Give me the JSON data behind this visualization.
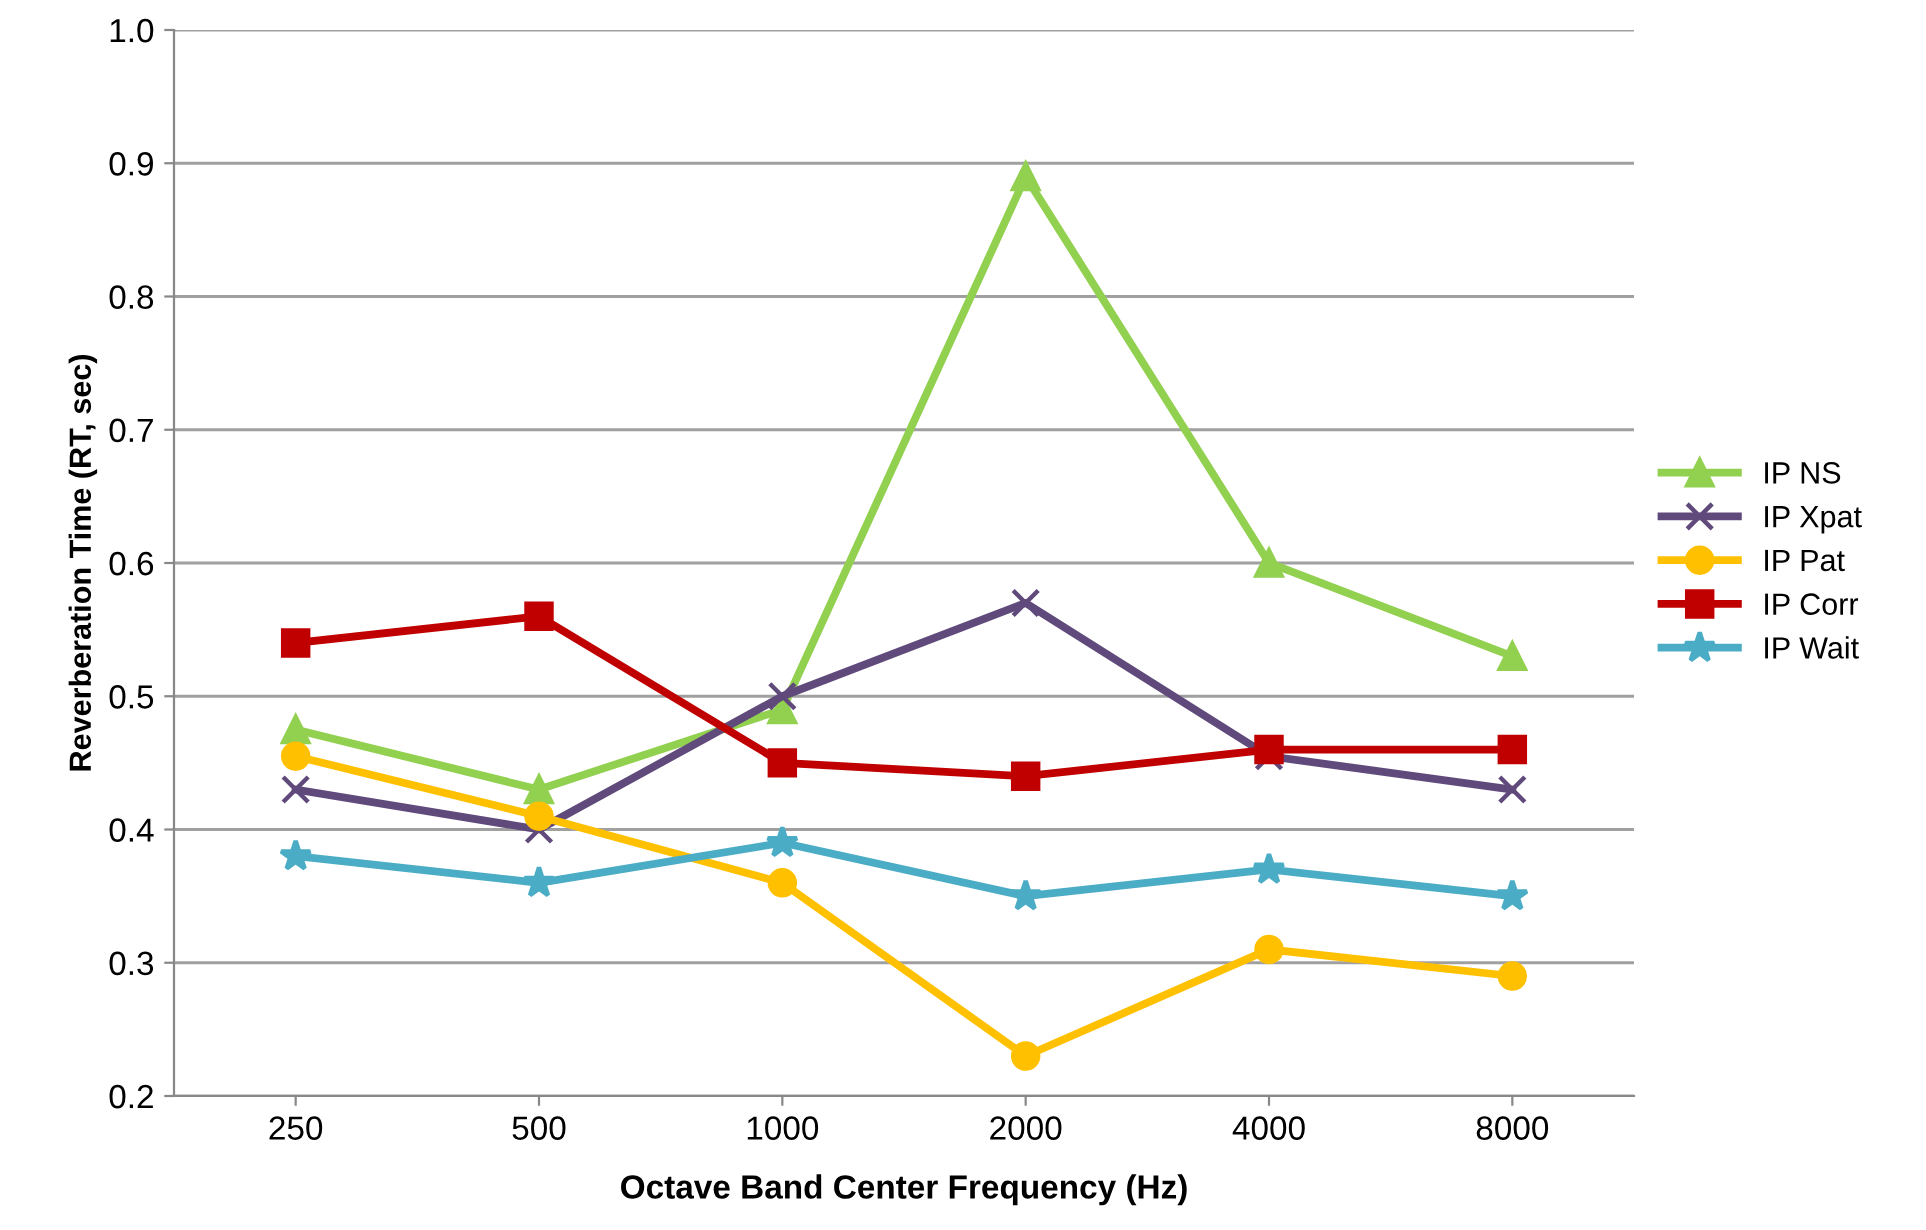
{
  "chart_data": {
    "type": "line",
    "xlabel": "Octave Band Center Frequency (Hz)",
    "ylabel": "Reverberation Time (RT, sec)",
    "categories": [
      "250",
      "500",
      "1000",
      "2000",
      "4000",
      "8000"
    ],
    "ylim": [
      0.2,
      1.0
    ],
    "yticks": [
      {
        "value": 0.2,
        "label": "0.2"
      },
      {
        "value": 0.3,
        "label": "0.3"
      },
      {
        "value": 0.4,
        "label": "0.4"
      },
      {
        "value": 0.5,
        "label": "0.5"
      },
      {
        "value": 0.6,
        "label": "0.6"
      },
      {
        "value": 0.7,
        "label": "0.7"
      },
      {
        "value": 0.8,
        "label": "0.8"
      },
      {
        "value": 0.9,
        "label": "0.9"
      },
      {
        "value": 1.0,
        "label": "1.0"
      }
    ],
    "grid": "y",
    "legend": "right",
    "line_style": "solid",
    "series": [
      {
        "name": "IP NS",
        "color": "#92d050",
        "marker": "triangle",
        "values": [
          0.475,
          0.43,
          0.49,
          0.89,
          0.6,
          0.53
        ]
      },
      {
        "name": "IP Xpat",
        "color": "#604a7b",
        "marker": "cross",
        "values": [
          0.43,
          0.4,
          0.5,
          0.57,
          0.455,
          0.43
        ]
      },
      {
        "name": "IP Pat",
        "color": "#ffc000",
        "marker": "circle",
        "values": [
          0.455,
          0.41,
          0.36,
          0.23,
          0.31,
          0.29
        ]
      },
      {
        "name": "IP Corr",
        "color": "#c00000",
        "marker": "square",
        "values": [
          0.54,
          0.56,
          0.45,
          0.44,
          0.46,
          0.46
        ]
      },
      {
        "name": "IP Wait",
        "color": "#4bacc6",
        "marker": "star",
        "values": [
          0.38,
          0.36,
          0.39,
          0.35,
          0.37,
          0.35
        ]
      }
    ]
  }
}
